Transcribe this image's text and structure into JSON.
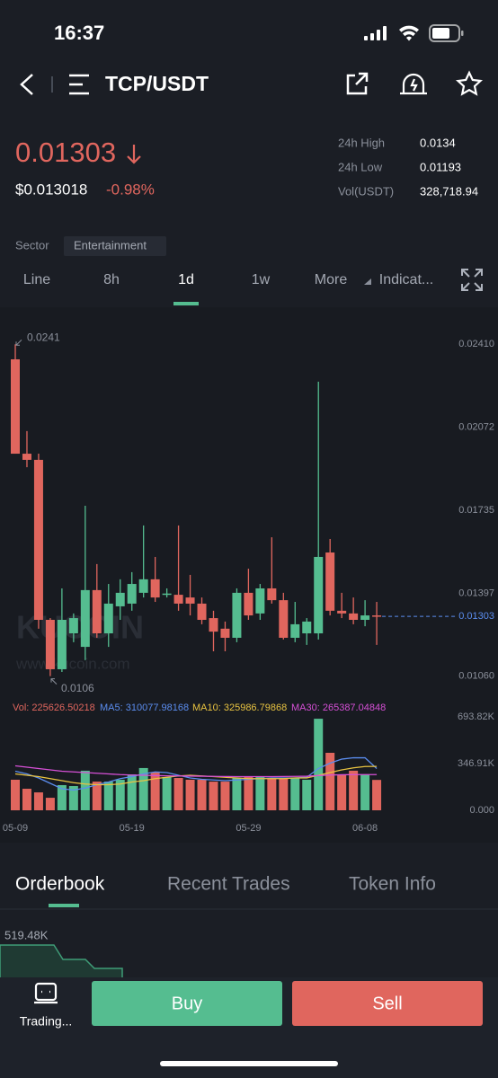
{
  "status_bar": {
    "time": "16:37"
  },
  "header": {
    "pair": "TCP/USDT"
  },
  "price": {
    "last": "0.01303",
    "fiat": "$0.013018",
    "change": "-0.98%"
  },
  "stats": [
    [
      "24h High",
      "0.0134"
    ],
    [
      "24h Low",
      "0.01193"
    ],
    [
      "Vol(USDT)",
      "328,718.94"
    ]
  ],
  "sector": {
    "label": "Sector",
    "value": "Entertainment"
  },
  "tabs": {
    "items": [
      "Line",
      "8h",
      "1d",
      "1w",
      "More",
      "Indicat..."
    ],
    "active": "1d"
  },
  "watermark": {
    "logo": "KUCOIN",
    "url": "www.kucoin.com"
  },
  "chart_data": {
    "type": "candlestick",
    "categories": [
      "05-09",
      null,
      null,
      null,
      null,
      null,
      null,
      null,
      null,
      null,
      "05-19",
      null,
      null,
      null,
      null,
      null,
      null,
      null,
      null,
      null,
      "05-29",
      null,
      null,
      null,
      null,
      null,
      null,
      null,
      null,
      null,
      "06-08",
      null
    ],
    "open": [
      0.02349,
      0.01965,
      0.0194,
      0.01289,
      0.01088,
      0.01234,
      0.01179,
      0.0141,
      0.01234,
      0.01344,
      0.01355,
      0.01399,
      0.01454,
      0.01395,
      0.01391,
      0.0138,
      0.01355,
      0.01296,
      0.01253,
      0.01216,
      0.01399,
      0.01315,
      0.01417,
      0.01369,
      0.01216,
      0.01234,
      0.01234,
      0.01563,
      0.01326,
      0.01315,
      0.01289,
      0.01307
    ],
    "high": [
      0.0241,
      0.02057,
      0.01965,
      0.01296,
      0.01417,
      0.01315,
      0.01753,
      0.01516,
      0.01435,
      0.01454,
      0.01483,
      0.01673,
      0.01545,
      0.01417,
      0.01673,
      0.01472,
      0.0138,
      0.01326,
      0.01282,
      0.01417,
      0.01497,
      0.01435,
      0.01625,
      0.01399,
      0.01362,
      0.01296,
      0.02258,
      0.01618,
      0.01399,
      0.0138,
      0.01369,
      0.01362
    ],
    "low": [
      0.01965,
      0.0191,
      0.01253,
      0.0106,
      0.01077,
      0.01198,
      0.01125,
      0.01216,
      0.01179,
      0.01289,
      0.01326,
      0.0138,
      0.01362,
      0.0138,
      0.01326,
      0.01307,
      0.01271,
      0.01161,
      0.01161,
      0.01198,
      0.01289,
      0.01289,
      0.01355,
      0.01209,
      0.01198,
      0.01187,
      0.01209,
      0.01307,
      0.01296,
      0.01271,
      0.01263,
      0.01187
    ],
    "close": [
      0.01965,
      0.0194,
      0.01289,
      0.01088,
      0.01289,
      0.01296,
      0.0141,
      0.01234,
      0.01355,
      0.01399,
      0.01435,
      0.01454,
      0.0138,
      0.01396,
      0.01355,
      0.01355,
      0.01289,
      0.01241,
      0.01216,
      0.01399,
      0.01307,
      0.01417,
      0.01369,
      0.01216,
      0.01271,
      0.01282,
      0.01545,
      0.01326,
      0.01315,
      0.01289,
      0.01307,
      0.01303
    ],
    "up_color": "#55bd90",
    "down_color": "#e0665e",
    "ylim": [
      0.0096,
      0.0255
    ],
    "yticks": [
      {
        "value": 0.0241,
        "label": "0.02410"
      },
      {
        "value": 0.02072,
        "label": "0.02072"
      },
      {
        "value": 0.01735,
        "label": "0.01735"
      },
      {
        "value": 0.01397,
        "label": "0.01397"
      },
      {
        "value": 0.0106,
        "label": "0.01060"
      }
    ],
    "high_label": 0.0241,
    "low_label": 0.0106,
    "last_price": 0.01303,
    "last_price_color": "#5b8def",
    "volume": {
      "legend_label": "Vol: 225626.50218",
      "values": [
        227000,
        160000,
        133000,
        93000,
        187000,
        180000,
        294000,
        213000,
        213000,
        227000,
        267000,
        314000,
        280000,
        247000,
        240000,
        227000,
        227000,
        213000,
        213000,
        240000,
        247000,
        247000,
        240000,
        240000,
        240000,
        227000,
        680000,
        427000,
        267000,
        294000,
        267000,
        225626.50218
      ],
      "ylim": [
        0,
        693820
      ],
      "yticks": [
        {
          "value": 693820,
          "label": "693.82K"
        },
        {
          "value": 346910,
          "label": "346.91K"
        },
        {
          "value": 0,
          "label": "0.000"
        }
      ]
    },
    "moving_averages": [
      {
        "name": "MA5",
        "legend_label": "MA5: 310077.98168",
        "color": "#5b8def",
        "values": [
          290000,
          270000,
          240000,
          200000,
          160000,
          150000,
          165000,
          190000,
          210000,
          235000,
          250000,
          270000,
          285000,
          280000,
          260000,
          240000,
          230000,
          225000,
          220000,
          225000,
          230000,
          235000,
          240000,
          240000,
          240000,
          245000,
          310000,
          350000,
          380000,
          390000,
          390000,
          310077.98168
        ]
      },
      {
        "name": "MA10",
        "legend_label": "MA10: 325986.79868",
        "color": "#e8c341",
        "values": [
          270000,
          260000,
          250000,
          235000,
          220000,
          205000,
          195000,
          190000,
          190000,
          195000,
          210000,
          220000,
          235000,
          245000,
          255000,
          260000,
          255000,
          250000,
          245000,
          240000,
          235000,
          235000,
          235000,
          235000,
          240000,
          240000,
          260000,
          280000,
          300000,
          315000,
          325000,
          325986.79868
        ]
      },
      {
        "name": "MA30",
        "legend_label": "MA30: 265387.04848",
        "color": "#d650d6",
        "values": [
          330000,
          320000,
          310000,
          300000,
          290000,
          285000,
          280000,
          275000,
          270000,
          265000,
          262000,
          260000,
          258000,
          256000,
          255000,
          254000,
          253000,
          252000,
          251000,
          250000,
          250000,
          250000,
          250000,
          251000,
          252000,
          253000,
          258000,
          262000,
          264000,
          265000,
          265000,
          265387.04848
        ]
      }
    ]
  },
  "bottom_tabs": [
    "Orderbook",
    "Recent Trades",
    "Token Info"
  ],
  "orderbook": {
    "depth_label": "519.48K"
  },
  "actions": {
    "trading": "Trading...",
    "buy": "Buy",
    "sell": "Sell"
  }
}
